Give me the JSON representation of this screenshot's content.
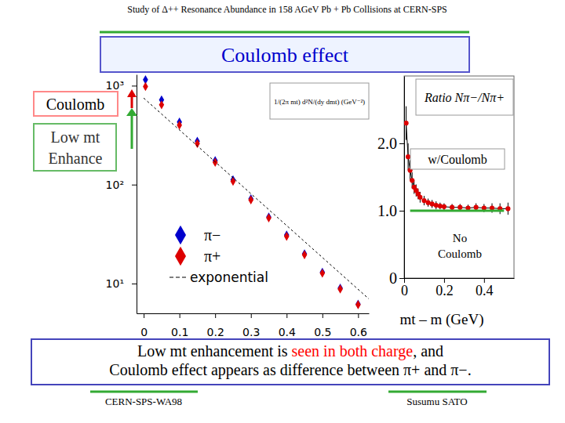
{
  "header": "Study of Δ++ Resonance Abundance in 158 AGeV Pb + Pb Collisions at CERN-SPS",
  "title": "Coulomb effect",
  "annotations": {
    "coulomb": "Coulomb",
    "enhance": [
      "Low mt",
      "Enhance"
    ]
  },
  "chart_data": [
    {
      "type": "scatter",
      "y_label": "1/(2π mt) d²N/(dy dmt) (GeV⁻²)",
      "log": "y",
      "legend": "lower left",
      "xlim": [
        -0.02,
        0.63
      ],
      "xticks": [
        0,
        0.1,
        0.2,
        0.3,
        0.4,
        0.5,
        0.6
      ],
      "ylim": [
        5,
        1300
      ],
      "yticks": [
        {
          "value": 10,
          "label": "10¹"
        },
        {
          "value": 100,
          "label": "10²"
        },
        {
          "value": 1000,
          "label": "10³"
        }
      ],
      "series": [
        {
          "name": "π−",
          "color": "#0000cc",
          "marker": "diamond",
          "x": [
            0.005,
            0.05,
            0.1,
            0.15,
            0.2,
            0.25,
            0.3,
            0.35,
            0.4,
            0.45,
            0.5,
            0.55,
            0.6
          ],
          "values": [
            1150,
            720,
            430,
            275,
            175,
            112,
            72,
            47,
            31,
            20,
            13,
            9,
            6.2
          ]
        },
        {
          "name": "π+",
          "color": "#dd0000",
          "marker": "diamond",
          "x": [
            0.005,
            0.05,
            0.1,
            0.15,
            0.2,
            0.25,
            0.3,
            0.35,
            0.4,
            0.45,
            0.5,
            0.55,
            0.6
          ],
          "values": [
            980,
            640,
            400,
            260,
            168,
            108,
            70,
            46,
            30,
            19.5,
            12.7,
            8.8,
            6.1
          ]
        },
        {
          "name": "exponential",
          "type": "line",
          "line_style": "dashed",
          "color": "#000000",
          "x": [
            0,
            0.63
          ],
          "values": [
            750,
            7
          ]
        }
      ]
    },
    {
      "type": "scatter",
      "title": "Ratio Nπ−/Nπ+",
      "x_label": "mt – m (GeV)",
      "xlim": [
        0,
        0.55
      ],
      "xticks": [
        0,
        0.2,
        0.4
      ],
      "ylim": [
        0,
        3
      ],
      "yticks": [
        0,
        {
          "value": 1,
          "label": "1.0"
        },
        {
          "value": 2,
          "label": "2.0"
        }
      ],
      "series": [
        {
          "name": "w/Coulomb",
          "color": "#dd0000",
          "marker": "circle",
          "line_style": "solid",
          "x": [
            0.01,
            0.02,
            0.03,
            0.04,
            0.05,
            0.06,
            0.07,
            0.08,
            0.1,
            0.12,
            0.14,
            0.16,
            0.18,
            0.2,
            0.24,
            0.28,
            0.32,
            0.36,
            0.4,
            0.44,
            0.48,
            0.52
          ],
          "values": [
            2.3,
            1.8,
            1.6,
            1.45,
            1.35,
            1.3,
            1.25,
            1.2,
            1.15,
            1.12,
            1.1,
            1.08,
            1.07,
            1.06,
            1.05,
            1.05,
            1.04,
            1.05,
            1.04,
            1.04,
            1.03,
            1.03
          ],
          "errors": [
            0.25,
            0.2,
            0.15,
            0.12,
            0.1,
            0.09,
            0.08,
            0.08,
            0.07,
            0.06,
            0.06,
            0.06,
            0.05,
            0.05,
            0.05,
            0.05,
            0.05,
            0.06,
            0.06,
            0.07,
            0.08,
            0.09
          ]
        },
        {
          "name": "No Coulomb",
          "type": "line",
          "line_style": "solid",
          "color": "#33aa33",
          "x": [
            0.03,
            0.5
          ],
          "values": [
            1,
            1
          ]
        }
      ]
    }
  ],
  "caption": {
    "lines": [
      [
        {
          "text": "Low mt enhancement is "
        },
        {
          "text": "seen in both charge",
          "color": "#ff0000"
        },
        {
          "text": ", and"
        }
      ],
      [
        {
          "text": "Coulomb effect appears as difference between π+ and π−."
        }
      ]
    ]
  },
  "footer": {
    "left": "CERN-SPS-WA98",
    "right": "Susumu SATO"
  }
}
